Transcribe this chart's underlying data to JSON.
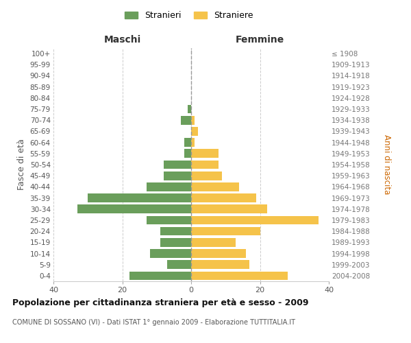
{
  "age_groups": [
    "0-4",
    "5-9",
    "10-14",
    "15-19",
    "20-24",
    "25-29",
    "30-34",
    "35-39",
    "40-44",
    "45-49",
    "50-54",
    "55-59",
    "60-64",
    "65-69",
    "70-74",
    "75-79",
    "80-84",
    "85-89",
    "90-94",
    "95-99",
    "100+"
  ],
  "birth_years": [
    "2004-2008",
    "1999-2003",
    "1994-1998",
    "1989-1993",
    "1984-1988",
    "1979-1983",
    "1974-1978",
    "1969-1973",
    "1964-1968",
    "1959-1963",
    "1954-1958",
    "1949-1953",
    "1944-1948",
    "1939-1943",
    "1934-1938",
    "1929-1933",
    "1924-1928",
    "1919-1923",
    "1914-1918",
    "1909-1913",
    "≤ 1908"
  ],
  "maschi": [
    18,
    7,
    12,
    9,
    9,
    13,
    33,
    30,
    13,
    8,
    8,
    2,
    2,
    0,
    3,
    1,
    0,
    0,
    0,
    0,
    0
  ],
  "femmine": [
    28,
    17,
    16,
    13,
    20,
    37,
    22,
    19,
    14,
    9,
    8,
    8,
    1,
    2,
    1,
    0,
    0,
    0,
    0,
    0,
    0
  ],
  "color_maschi": "#6a9e5b",
  "color_femmine": "#f5c34a",
  "title": "Popolazione per cittadinanza straniera per età e sesso - 2009",
  "subtitle": "COMUNE DI SOSSANO (VI) - Dati ISTAT 1° gennaio 2009 - Elaborazione TUTTITALIA.IT",
  "ylabel_left": "Fasce di età",
  "ylabel_right": "Anni di nascita",
  "xlabel_left": "Maschi",
  "xlabel_right": "Femmine",
  "legend_maschi": "Stranieri",
  "legend_femmine": "Straniere",
  "xlim": 40,
  "background_color": "#ffffff",
  "grid_color": "#cccccc"
}
